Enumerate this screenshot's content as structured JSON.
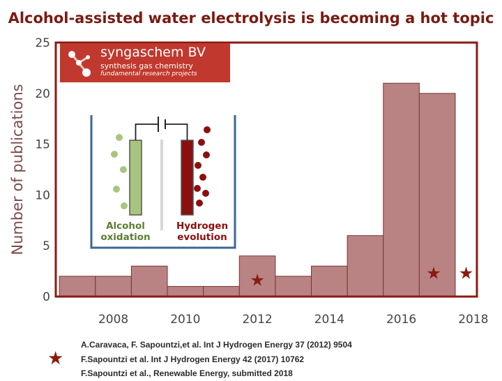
{
  "title": "Alcohol-assisted water electrolysis is becoming a hot topic",
  "logo": {
    "name": "syngaschem BV",
    "line1": "synthesis gas chemistry",
    "line2": "fundamental research projects"
  },
  "inset": {
    "left_label_1": "Alcohol",
    "left_label_2": "oxidation",
    "right_label_1": "Hydrogen",
    "right_label_2": "evolution",
    "colors": {
      "anode": "#a9c47f",
      "cathode": "#8b0f0f",
      "cell": "#3a6796"
    }
  },
  "references": [
    "A.Caravaca, F. Sapountzi,et al. Int J Hydrogen Energy 37 (2012) 9504",
    "F.Sapountzi et al. Int J Hydrogen Energy 42 (2017) 10762",
    "F.Sapountzi et al., Renewable Energy, submitted 2018"
  ],
  "chart_data": {
    "type": "bar",
    "title": "Alcohol-assisted water electrolysis is becoming a hot topic",
    "xlabel": "",
    "ylabel": "Number of publications",
    "x_ticks": [
      2008,
      2010,
      2012,
      2014,
      2016,
      2018
    ],
    "y_ticks": [
      0,
      5,
      10,
      15,
      20,
      25
    ],
    "xlim": [
      2006.4,
      2018.1
    ],
    "ylim": [
      0,
      25
    ],
    "bins": [
      {
        "start": 2006.5,
        "end": 2007.5,
        "value": 2
      },
      {
        "start": 2007.5,
        "end": 2008.5,
        "value": 2
      },
      {
        "start": 2008.5,
        "end": 2009.5,
        "value": 3
      },
      {
        "start": 2009.5,
        "end": 2010.5,
        "value": 1
      },
      {
        "start": 2010.5,
        "end": 2011.5,
        "value": 1
      },
      {
        "start": 2011.5,
        "end": 2012.5,
        "value": 4
      },
      {
        "start": 2012.5,
        "end": 2013.5,
        "value": 2
      },
      {
        "start": 2013.5,
        "end": 2014.5,
        "value": 3
      },
      {
        "start": 2014.5,
        "end": 2015.5,
        "value": 6
      },
      {
        "start": 2015.5,
        "end": 2016.5,
        "value": 21
      },
      {
        "start": 2016.5,
        "end": 2017.5,
        "value": 20
      }
    ],
    "markers": [
      {
        "x": 2012.0,
        "y": 1.6,
        "symbol": "star"
      },
      {
        "x": 2016.9,
        "y": 2.3,
        "symbol": "star"
      },
      {
        "x": 2017.8,
        "y": 2.3,
        "symbol": "star"
      }
    ],
    "colors": {
      "bar": "#b98383",
      "bar_edge": "#7a3434",
      "frame": "#8b1a10",
      "star": "#8b1a10"
    },
    "grid": false,
    "legend": "none"
  }
}
